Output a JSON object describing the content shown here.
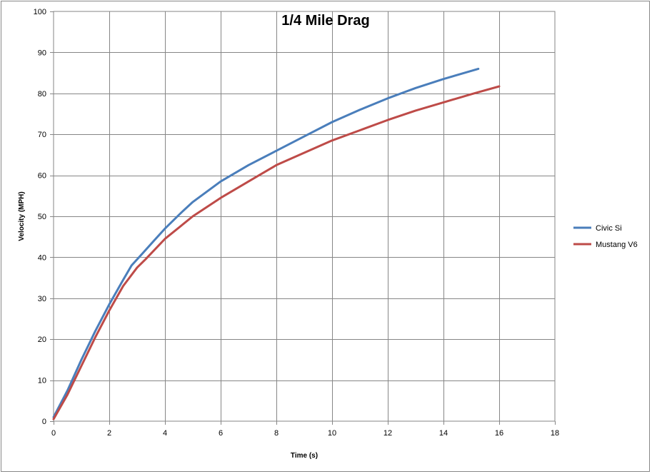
{
  "chart_data": {
    "type": "line",
    "title": "1/4 Mile Drag",
    "xlabel": "Time (s)",
    "ylabel": "Velocity (MPH)",
    "xlim": [
      0,
      18
    ],
    "ylim": [
      0,
      100
    ],
    "xticks": [
      0,
      2,
      4,
      6,
      8,
      10,
      12,
      14,
      16,
      18
    ],
    "yticks": [
      0,
      10,
      20,
      30,
      40,
      50,
      60,
      70,
      80,
      90,
      100
    ],
    "grid": true,
    "legend_position": "right",
    "series": [
      {
        "name": "Civic Si",
        "color": "#4a7ebb",
        "x": [
          0,
          0.5,
          1,
          1.5,
          2,
          2.5,
          2.8,
          3.2,
          3.6,
          4,
          4.6,
          5,
          6,
          7,
          8,
          9,
          10,
          11,
          12,
          13,
          14,
          15.25
        ],
        "y": [
          1,
          7.5,
          15,
          22,
          28.5,
          34.5,
          38,
          41,
          44,
          47,
          51,
          53.5,
          58.5,
          62.5,
          66,
          69.5,
          73,
          76,
          78.8,
          81.3,
          83.5,
          86
        ]
      },
      {
        "name": "Mustang V6",
        "color": "#be4b48",
        "x": [
          0,
          0.5,
          1,
          1.5,
          2,
          2.5,
          3,
          3.3,
          4,
          5,
          6,
          7,
          8,
          9,
          10,
          11,
          12,
          13,
          14,
          15,
          16
        ],
        "y": [
          0.5,
          6.5,
          13.5,
          20.5,
          27,
          33,
          37.5,
          39.5,
          44.5,
          50,
          54.5,
          58.5,
          62.5,
          65.5,
          68.5,
          71,
          73.5,
          75.8,
          77.8,
          79.8,
          81.7
        ]
      }
    ]
  }
}
